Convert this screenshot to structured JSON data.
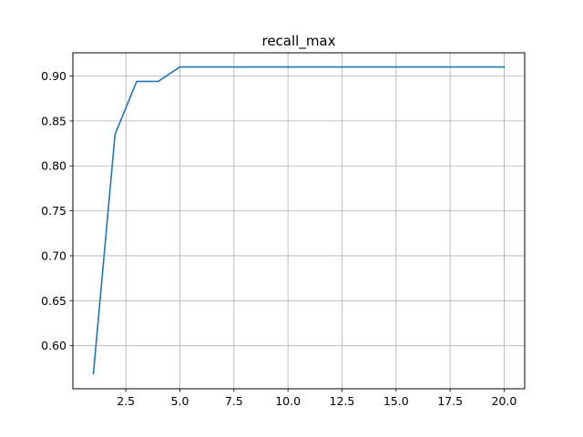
{
  "chart_data": {
    "type": "line",
    "title": "recall_max",
    "xlabel": "",
    "ylabel": "",
    "xlim": [
      0.05,
      20.95
    ],
    "ylim": [
      0.5521,
      0.9258
    ],
    "grid": true,
    "x_ticks": [
      2.5,
      5.0,
      7.5,
      10.0,
      12.5,
      15.0,
      17.5,
      20.0
    ],
    "x_tick_labels": [
      "2.5",
      "5.0",
      "7.5",
      "10.0",
      "12.5",
      "15.0",
      "17.5",
      "20.0"
    ],
    "y_ticks": [
      0.6,
      0.65,
      0.7,
      0.75,
      0.8,
      0.85,
      0.9
    ],
    "y_tick_labels": [
      "0.60",
      "0.65",
      "0.70",
      "0.75",
      "0.80",
      "0.85",
      "0.90"
    ],
    "series": [
      {
        "color": "#1f77b4",
        "x": [
          1,
          2,
          3,
          4,
          5,
          6,
          7,
          8,
          9,
          10,
          11,
          12,
          13,
          14,
          15,
          16,
          17,
          18,
          19,
          20
        ],
        "y": [
          0.569,
          0.835,
          0.894,
          0.894,
          0.91,
          0.91,
          0.91,
          0.91,
          0.91,
          0.91,
          0.91,
          0.91,
          0.91,
          0.91,
          0.91,
          0.91,
          0.91,
          0.91,
          0.91,
          0.91
        ]
      }
    ]
  }
}
